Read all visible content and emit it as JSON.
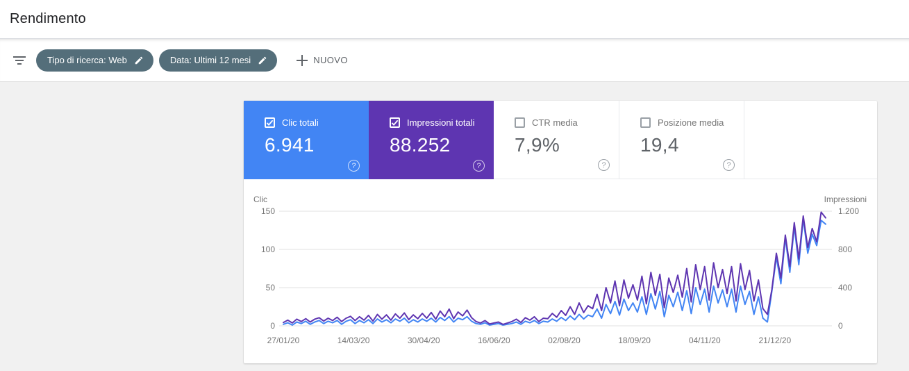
{
  "page": {
    "title": "Rendimento"
  },
  "filter_bar": {
    "chips": [
      {
        "label": "Tipo di ricerca: Web"
      },
      {
        "label": "Data: Ultimi 12 mesi"
      }
    ],
    "new_button_label": "NUOVO"
  },
  "icons": {
    "help_glyph": "?"
  },
  "metric_cards": [
    {
      "label": "Clic totali",
      "value": "6.941",
      "selected": true,
      "color": "#4285f4"
    },
    {
      "label": "Impressioni totali",
      "value": "88.252",
      "selected": true,
      "color": "#5e35b1"
    },
    {
      "label": "CTR media",
      "value": "7,9%",
      "selected": false,
      "color": ""
    },
    {
      "label": "Posizione media",
      "value": "19,4",
      "selected": false,
      "color": ""
    }
  ],
  "chart_data": {
    "type": "line",
    "left_axis": {
      "label": "Clic",
      "max": 150,
      "ticks": [
        {
          "label": "0",
          "value": 0
        },
        {
          "label": "50",
          "value": 50
        },
        {
          "label": "100",
          "value": 100
        },
        {
          "label": "150",
          "value": 150
        }
      ]
    },
    "right_axis": {
      "label": "Impressioni",
      "max": 1200,
      "ticks": [
        {
          "label": "0",
          "value": 0
        },
        {
          "label": "400",
          "value": 400
        },
        {
          "label": "800",
          "value": 800
        },
        {
          "label": "1.200",
          "value": 1200
        }
      ]
    },
    "x_ticks": [
      {
        "label": "27/01/20",
        "day": 0
      },
      {
        "label": "14/03/20",
        "day": 47
      },
      {
        "label": "30/04/20",
        "day": 94
      },
      {
        "label": "16/06/20",
        "day": 141
      },
      {
        "label": "02/08/20",
        "day": 188
      },
      {
        "label": "18/09/20",
        "day": 235
      },
      {
        "label": "04/11/20",
        "day": 282
      },
      {
        "label": "21/12/20",
        "day": 329
      }
    ],
    "days_total": 363,
    "sample_interval_days": 3,
    "grid": true,
    "legend_position": "none",
    "series": [
      {
        "name": "Clic",
        "axis": "left",
        "color": "#4285f4",
        "values": [
          2,
          4,
          1,
          5,
          3,
          6,
          2,
          5,
          7,
          3,
          6,
          4,
          7,
          2,
          6,
          8,
          3,
          7,
          4,
          8,
          3,
          9,
          5,
          8,
          4,
          9,
          6,
          10,
          4,
          8,
          5,
          9,
          6,
          10,
          5,
          11,
          7,
          12,
          5,
          10,
          8,
          12,
          6,
          3,
          2,
          4,
          1,
          2,
          3,
          1,
          2,
          3,
          5,
          2,
          6,
          4,
          7,
          3,
          6,
          5,
          9,
          6,
          11,
          7,
          13,
          8,
          15,
          9,
          14,
          12,
          22,
          10,
          28,
          16,
          32,
          14,
          35,
          20,
          30,
          18,
          38,
          15,
          42,
          22,
          45,
          12,
          40,
          25,
          44,
          20,
          46,
          16,
          50,
          28,
          48,
          18,
          52,
          30,
          47,
          25,
          48,
          18,
          52,
          28,
          45,
          15,
          38,
          10,
          5,
          45,
          90,
          55,
          115,
          70,
          130,
          80,
          140,
          95,
          120,
          105,
          138,
          133
        ]
      },
      {
        "name": "Impressioni",
        "axis": "right",
        "color": "#5e35b1",
        "values": [
          35,
          60,
          30,
          70,
          45,
          75,
          40,
          70,
          85,
          50,
          80,
          55,
          90,
          45,
          80,
          100,
          55,
          95,
          60,
          110,
          50,
          120,
          70,
          115,
          60,
          125,
          80,
          135,
          65,
          115,
          75,
          130,
          80,
          140,
          70,
          155,
          95,
          175,
          75,
          145,
          105,
          165,
          85,
          45,
          30,
          55,
          20,
          30,
          40,
          15,
          30,
          45,
          70,
          35,
          85,
          60,
          95,
          45,
          80,
          75,
          130,
          90,
          160,
          110,
          200,
          120,
          240,
          140,
          210,
          180,
          330,
          160,
          400,
          240,
          470,
          210,
          480,
          290,
          430,
          270,
          520,
          230,
          560,
          320,
          540,
          190,
          500,
          350,
          530,
          300,
          600,
          250,
          640,
          380,
          620,
          270,
          660,
          400,
          590,
          340,
          620,
          260,
          650,
          380,
          580,
          260,
          480,
          180,
          120,
          380,
          760,
          500,
          950,
          620,
          1080,
          700,
          1150,
          820,
          1020,
          880,
          1190,
          1130
        ]
      }
    ]
  }
}
